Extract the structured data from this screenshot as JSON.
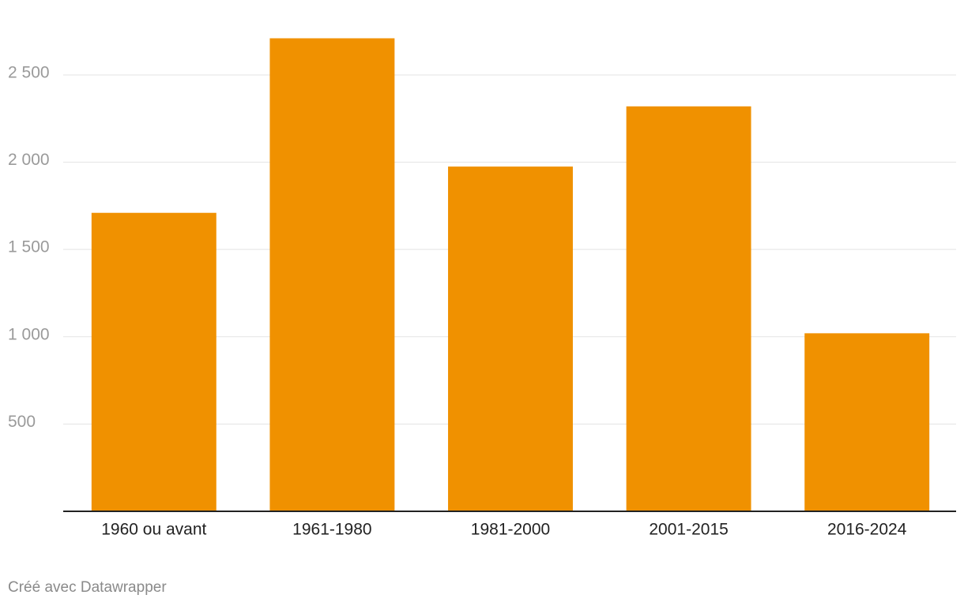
{
  "chart_data": {
    "type": "bar",
    "categories": [
      "1960 ou avant",
      "1961-1980",
      "1981-2000",
      "2001-2015",
      "2016-2024"
    ],
    "values": [
      1710,
      2710,
      1975,
      2320,
      1020
    ],
    "color": "#f09100",
    "ylim": [
      0,
      2720
    ],
    "yticks": [
      500,
      {
        "value": 1000,
        "label": "1 000"
      },
      {
        "value": 1500,
        "label": "1 500"
      },
      {
        "value": 2000,
        "label": "2 000"
      },
      {
        "value": 2500,
        "label": "2 500"
      }
    ],
    "grid": true,
    "footer": "Créé avec Datawrapper"
  }
}
